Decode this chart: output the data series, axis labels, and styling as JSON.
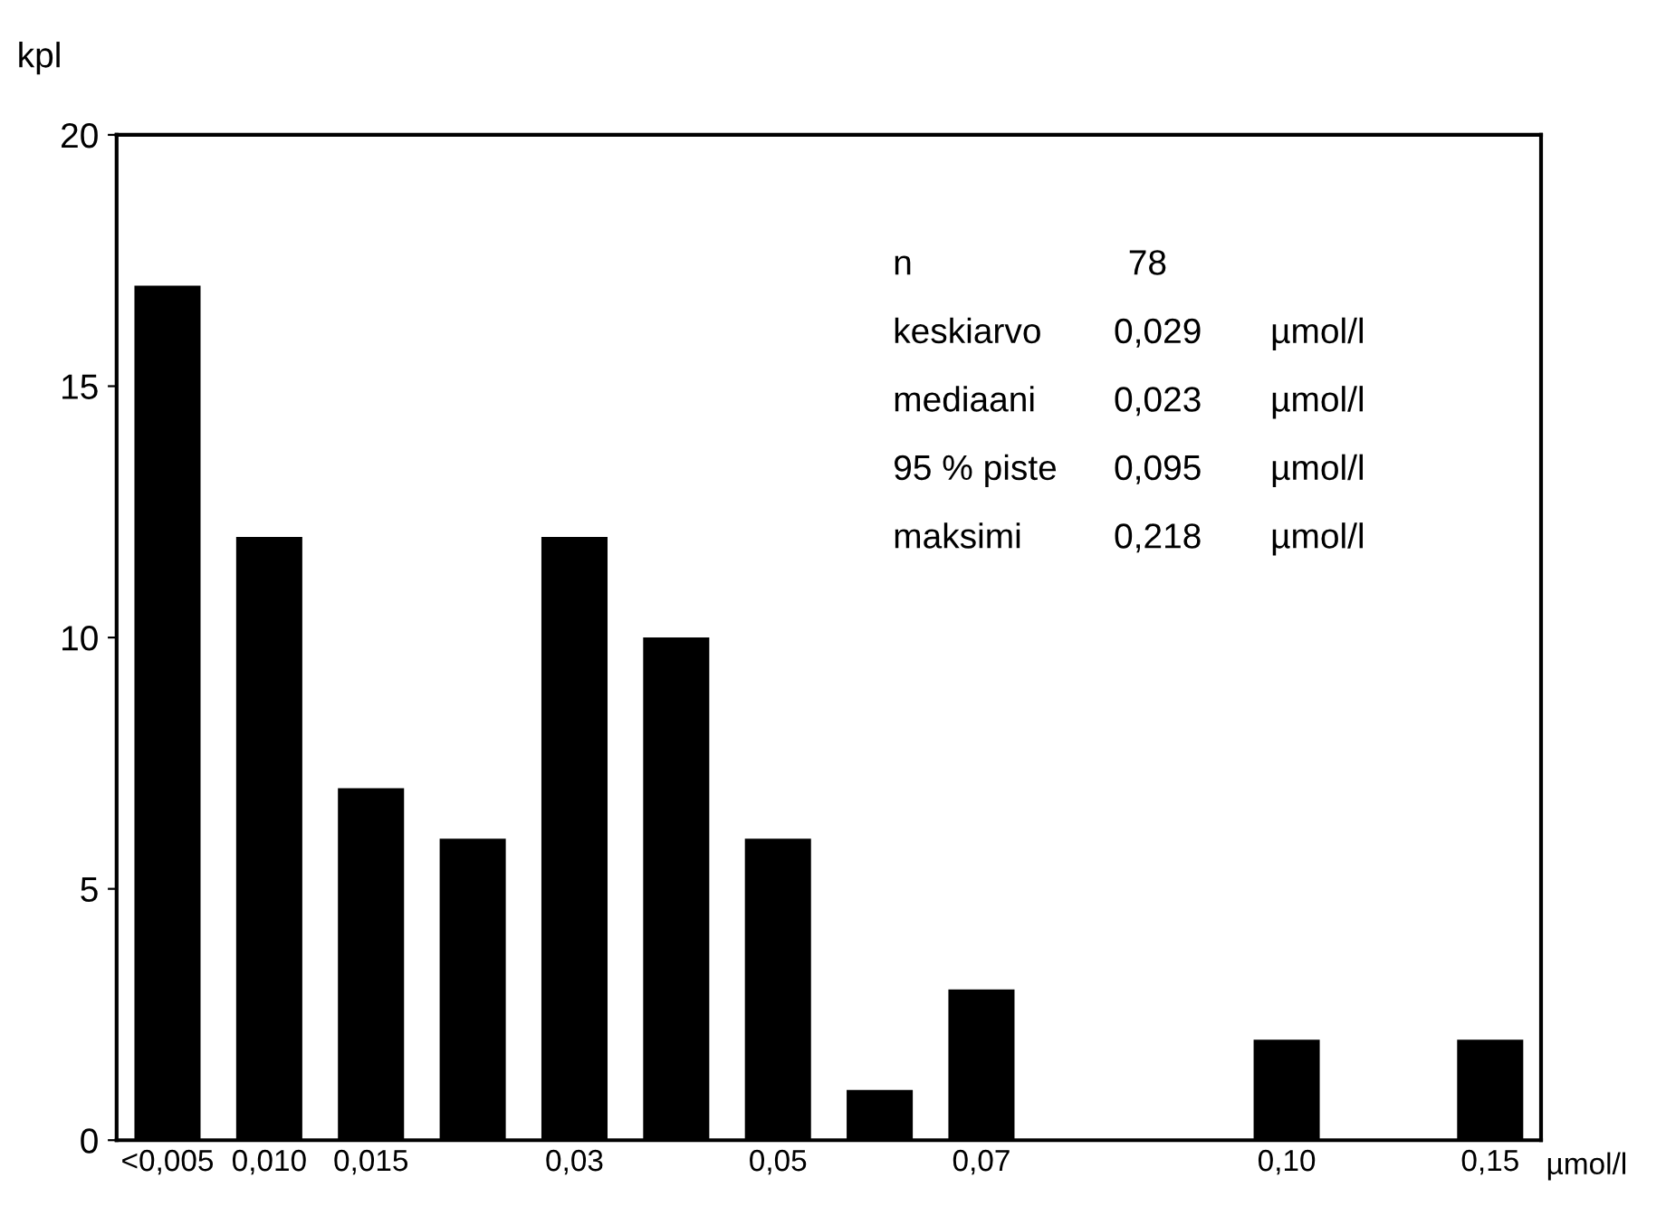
{
  "chart_data": {
    "type": "bar",
    "ylabel": "kpl",
    "xlabel": "µmol/l",
    "categories": [
      "<0,005",
      "0,010",
      "0,015",
      null,
      "0,03",
      null,
      "0,05",
      null,
      "0,07",
      null,
      null,
      "0,10",
      null,
      "0,15"
    ],
    "values": [
      17,
      12,
      7,
      6,
      12,
      10,
      6,
      1,
      3,
      0,
      0,
      2,
      0,
      2
    ],
    "color": "#000000",
    "ylim": [
      0,
      20
    ],
    "yticks": [
      0,
      5,
      10,
      15,
      20
    ],
    "grid": false,
    "legend": false,
    "annotations": [
      "n  78",
      "keskiarvo  0,029  µmol/l",
      "mediaani  0,023  µmol/l",
      "95 % piste  0,095  µmol/l",
      "maksimi  0,218  µmol/l"
    ]
  }
}
